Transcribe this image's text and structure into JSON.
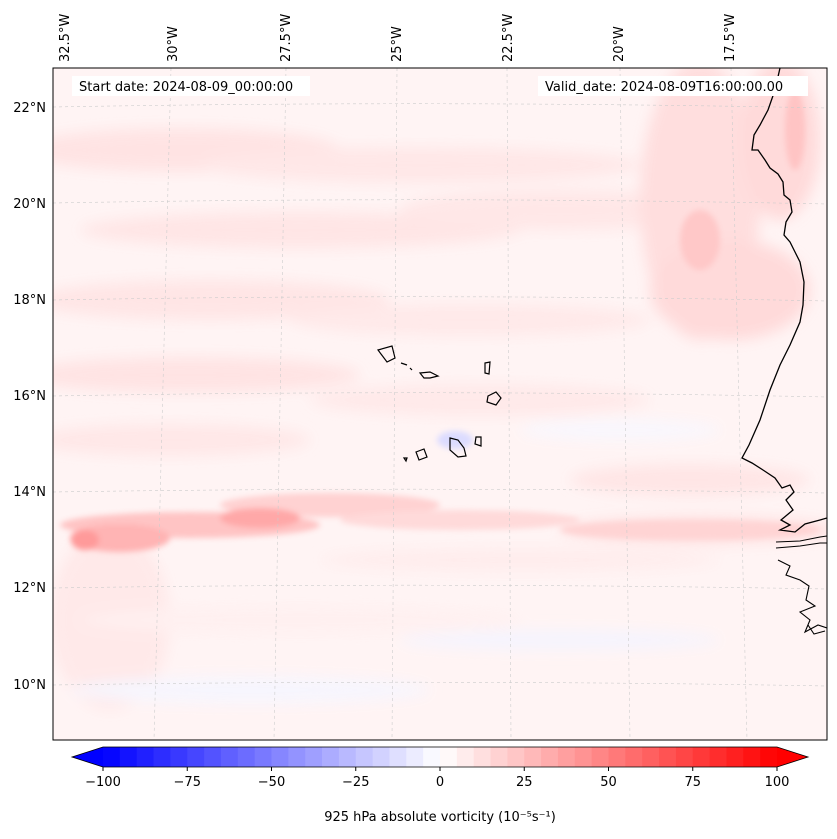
{
  "header": {
    "start_date": "Start date: 2024-08-09_00:00:00",
    "valid_date": "Valid_date: 2024-08-09T16:00:00.00"
  },
  "map": {
    "projection": "lambert-conformal",
    "lon_labels": [
      "32.5°W",
      "30°W",
      "27.5°W",
      "25°W",
      "22.5°W",
      "20°W",
      "17.5°W"
    ],
    "lat_labels": [
      "22°N",
      "20°N",
      "18°N",
      "16°N",
      "14°N",
      "12°N",
      "10°N"
    ],
    "lon_values": [
      -32.5,
      -30,
      -27.5,
      -25,
      -22.5,
      -20,
      -17.5
    ],
    "lat_values": [
      22,
      20,
      18,
      16,
      14,
      12,
      10
    ],
    "features": [
      "Cape Verde islands",
      "West African coastline (Mauritania, Senegal, Gambia, Guinea-Bissau)"
    ]
  },
  "colorbar": {
    "label": "925 hPa absolute vorticity (10⁻⁵s⁻¹)",
    "ticks": [
      "−100",
      "−75",
      "−50",
      "−25",
      "0",
      "25",
      "50",
      "75",
      "100"
    ],
    "min": -100,
    "max": 100,
    "colormap": "bwr",
    "low_color": "#0000ff",
    "mid_color": "#ffffff",
    "high_color": "#ff0000"
  }
}
